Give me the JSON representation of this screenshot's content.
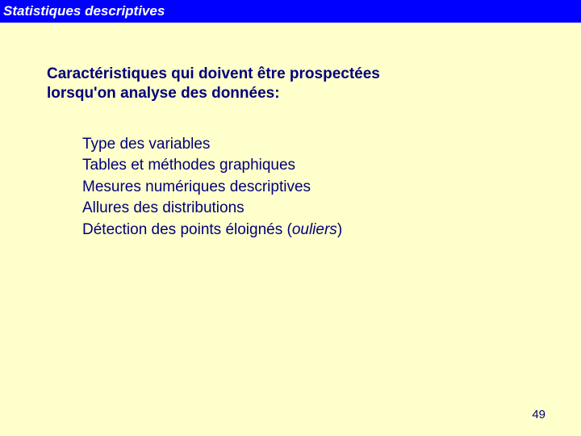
{
  "header": {
    "title": "Statistiques descriptives"
  },
  "intro": {
    "line1": "Caractéristiques qui doivent être prospectées",
    "line2": "lorsqu'on analyse des données:"
  },
  "list": {
    "items": [
      "Type des variables",
      "Tables et méthodes graphiques",
      "Mesures numériques descriptives",
      "Allures des distributions"
    ],
    "last_prefix": "Détection des points éloignés (",
    "last_italic": "ouliers",
    "last_suffix": ")"
  },
  "page_number": "49",
  "colors": {
    "background": "#ffffcc",
    "header_bg": "#0000ff",
    "header_text": "#ffffff",
    "body_text": "#00007a"
  }
}
